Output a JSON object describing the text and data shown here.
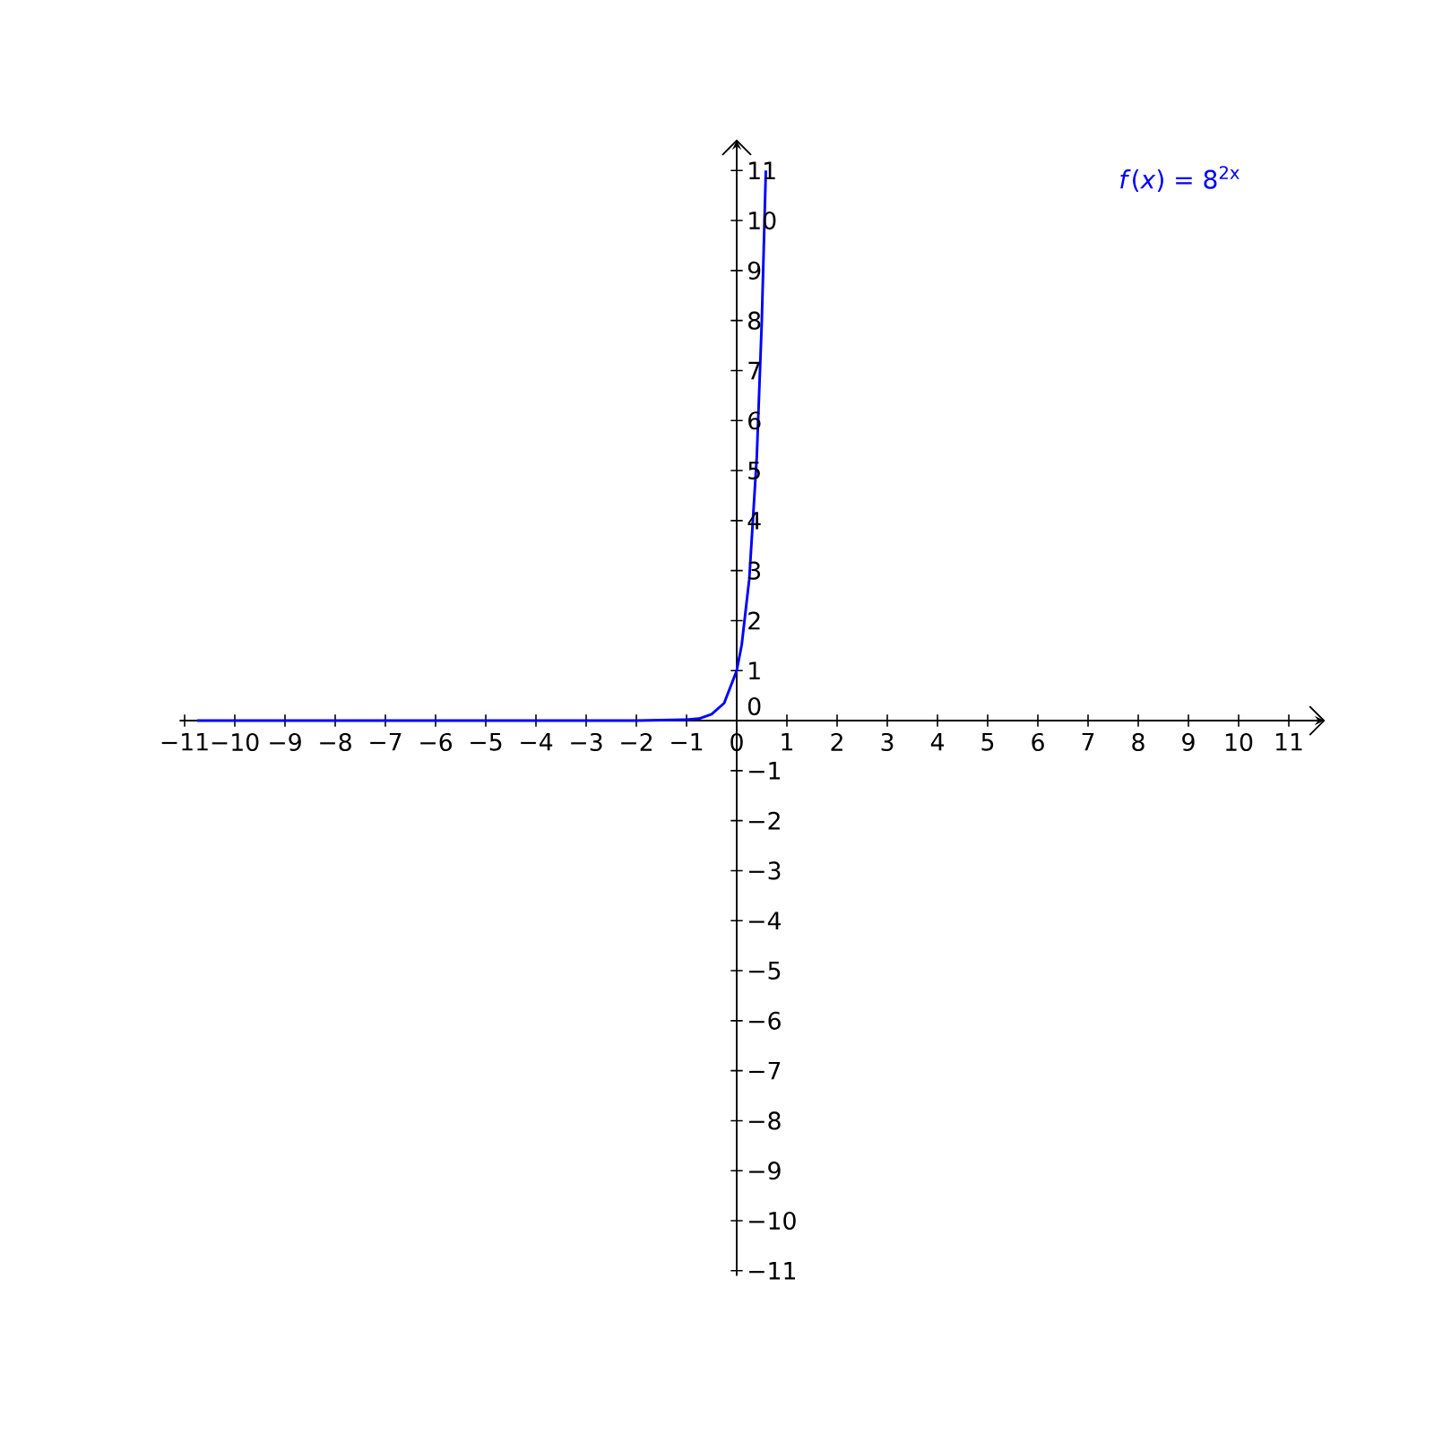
{
  "chart_data": {
    "type": "line",
    "xlim": [
      -11.1,
      11.7
    ],
    "ylim": [
      -11.1,
      11.6
    ],
    "xticks": [
      {
        "value": -11,
        "label": "−11"
      },
      {
        "value": -10,
        "label": "−10"
      },
      {
        "value": -9,
        "label": "−9"
      },
      {
        "value": -8,
        "label": "−8"
      },
      {
        "value": -7,
        "label": "−7"
      },
      {
        "value": -6,
        "label": "−6"
      },
      {
        "value": -5,
        "label": "−5"
      },
      {
        "value": -4,
        "label": "−4"
      },
      {
        "value": -3,
        "label": "−3"
      },
      {
        "value": -2,
        "label": "−2"
      },
      {
        "value": -1,
        "label": "−1"
      },
      0,
      1,
      2,
      3,
      4,
      5,
      6,
      7,
      8,
      9,
      10,
      11
    ],
    "yticks": [
      {
        "value": -11,
        "label": "−11"
      },
      {
        "value": -10,
        "label": "−10"
      },
      {
        "value": -9,
        "label": "−9"
      },
      {
        "value": -8,
        "label": "−8"
      },
      {
        "value": -7,
        "label": "−7"
      },
      {
        "value": -6,
        "label": "−6"
      },
      {
        "value": -5,
        "label": "−5"
      },
      {
        "value": -4,
        "label": "−4"
      },
      {
        "value": -3,
        "label": "−3"
      },
      {
        "value": -2,
        "label": "−2"
      },
      {
        "value": -1,
        "label": "−1"
      },
      0,
      1,
      2,
      3,
      4,
      5,
      6,
      7,
      8,
      9,
      10,
      11
    ],
    "grid": false,
    "marker": "none",
    "line_style": "solid",
    "series": [
      {
        "name": "*f*(*x*) = 8$^{2x}$",
        "color": "#0000ff",
        "x": [
          -10.75,
          -3,
          -2,
          -1,
          -0.75,
          -0.5,
          -0.25,
          0,
          0.1,
          0.25,
          0.4,
          0.5,
          0.58
        ],
        "values": [
          0,
          0,
          0,
          0.02,
          0.04,
          0.13,
          0.35,
          1,
          1.52,
          2.83,
          5.28,
          8,
          11
        ]
      }
    ]
  }
}
